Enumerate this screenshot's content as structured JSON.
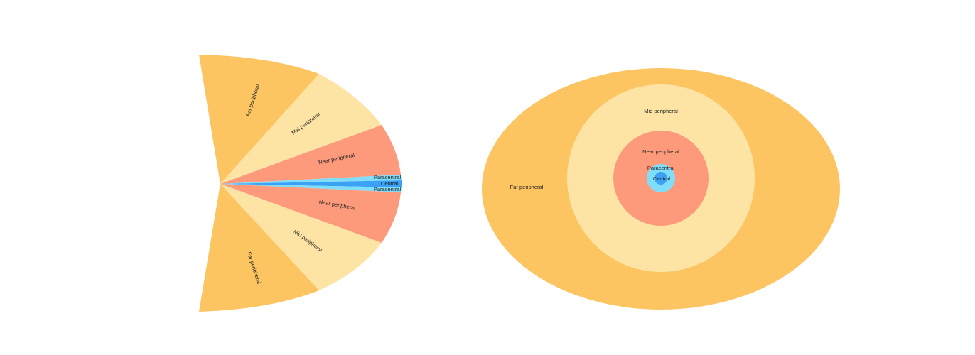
{
  "colors": {
    "far": "#fdc462",
    "mid": "#fee4a4",
    "near": "#fe9a7c",
    "paracentral": "#7fdefa",
    "central": "#3aa1f5",
    "background": "#ffffff"
  },
  "side_view": {
    "labels": {
      "far_upper": "Far peripheral",
      "mid_upper": "Mid peripheral",
      "near_upper": "Near peripheral",
      "paracentral_upper": "Paracentral",
      "central": "Central",
      "paracentral_lower": "Paracentral",
      "near_lower": "Near peripheral",
      "mid_lower": "Mid peripheral",
      "far_lower": "Far peripheral"
    }
  },
  "front_view": {
    "labels": {
      "far": "Far peripheral",
      "mid": "Mid peripheral",
      "near": "Near peripheral",
      "paracentral": "Paracentral",
      "central": "Central"
    }
  }
}
